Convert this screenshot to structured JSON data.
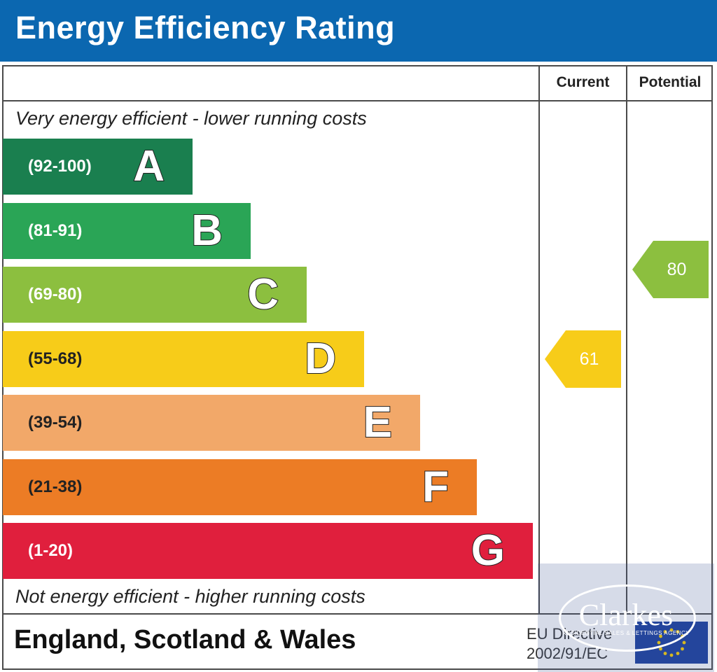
{
  "header": {
    "title": "Energy Efficiency Rating"
  },
  "columns": {
    "current": "Current",
    "potential": "Potential"
  },
  "notes": {
    "top": "Very energy efficient - lower running costs",
    "bottom": "Not energy efficient - higher running costs"
  },
  "footer": {
    "region": "England, Scotland & Wales",
    "directive_line1": "EU Directive",
    "directive_line2": "2002/91/EC"
  },
  "watermark": {
    "name": "Clarkes",
    "tagline": "RESIDENTIAL SALES & LETTINGS AGENCY"
  },
  "chart_data": {
    "type": "bar",
    "title": "Energy Efficiency Rating",
    "bands": [
      {
        "letter": "A",
        "range": "(92-100)",
        "color": "#1a7f4f"
      },
      {
        "letter": "B",
        "range": "(81-91)",
        "color": "#2aa556"
      },
      {
        "letter": "C",
        "range": "(69-80)",
        "color": "#8cbf3f"
      },
      {
        "letter": "D",
        "range": "(55-68)",
        "color": "#f7cc19"
      },
      {
        "letter": "E",
        "range": "(39-54)",
        "color": "#f2a869"
      },
      {
        "letter": "F",
        "range": "(21-38)",
        "color": "#ec7c25"
      },
      {
        "letter": "G",
        "range": "(1-20)",
        "color": "#e01f3d"
      }
    ],
    "current": {
      "value": 61,
      "band": "D",
      "color": "#f7cc19"
    },
    "potential": {
      "value": 80,
      "band": "C",
      "color": "#8cbf3f"
    }
  }
}
